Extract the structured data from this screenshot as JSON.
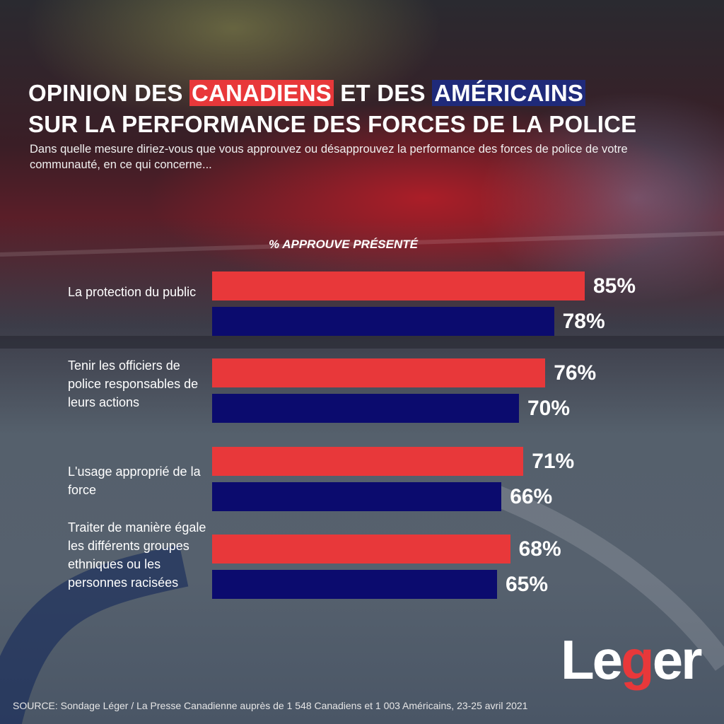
{
  "title": {
    "line1_a": "OPINION DES ",
    "line1_canadiens": "CANADIENS",
    "line1_b": " ET DES ",
    "line1_americains": "AMÉRICAINS",
    "line2": "SUR LA PERFORMANCE DES FORCES DE LA POLICE"
  },
  "subtitle": "Dans quelle mesure diriez-vous que vous approuvez ou désapprouvez la performance des forces de police de votre communauté, en ce qui concerne...",
  "colors": {
    "canadiens": "#e8383a",
    "americains": "#0b0b6e"
  },
  "chart_data": {
    "type": "bar",
    "orientation": "horizontal",
    "xlabel": "% APPROUVE PRÉSENTÉ",
    "categories": [
      "La protection du public",
      "Tenir les officiers de police responsables de leurs actions",
      "L'usage approprié de la force",
      "Traiter de manière égale les différents groupes ethniques ou les personnes racisées"
    ],
    "series": [
      {
        "name": "CANADIENS",
        "color": "#e8383a",
        "values": [
          85,
          76,
          71,
          68
        ],
        "labels": [
          "85%",
          "76%",
          "71%",
          "68%"
        ]
      },
      {
        "name": "AMÉRICAINS",
        "color": "#0b0b6e",
        "values": [
          78,
          70,
          66,
          65
        ],
        "labels": [
          "78%",
          "70%",
          "66%",
          "65%"
        ]
      }
    ],
    "xlim": [
      0,
      100
    ],
    "grid": false
  },
  "logo": {
    "text_a": "Le",
    "text_g": "g",
    "text_b": "er"
  },
  "source": "SOURCE: Sondage Léger / La Presse Canadienne auprès de 1 548 Canadiens et 1 003 Américains, 23-25 avril 2021"
}
